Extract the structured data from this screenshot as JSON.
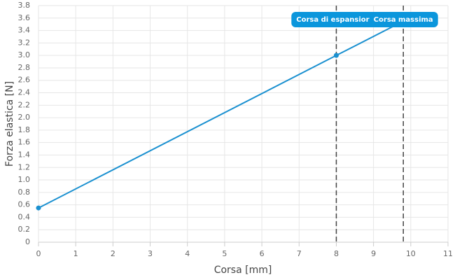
{
  "chart_data": {
    "type": "line",
    "x_label": "Corsa [mm]",
    "y_label": "Forza elastica [N]",
    "series": [
      {
        "color": "#1a90d0",
        "x": [
          0,
          8,
          9.8
        ],
        "values": [
          0.55,
          3.0,
          3.55
        ]
      }
    ],
    "annotations": [
      {
        "x": 8,
        "label": "Corsa di espansior"
      },
      {
        "x": 9.8,
        "label": "Corsa massima"
      }
    ],
    "annotation_color": "#0b96dc",
    "xlim": [
      0,
      11
    ],
    "xticks": [
      0,
      1,
      2,
      3,
      4,
      5,
      6,
      7,
      8,
      9,
      10,
      11
    ],
    "ylim": [
      0,
      3.8
    ],
    "yticks": [
      0,
      0.2,
      0.4,
      0.6,
      0.8,
      {
        "value": 1,
        "label": "1.0"
      },
      1.2,
      1.4,
      1.6,
      1.8,
      {
        "value": 2,
        "label": "2.0"
      },
      2.2,
      2.4,
      2.6,
      2.8,
      {
        "value": 3,
        "label": "3.0"
      },
      3.2,
      3.4,
      3.6,
      3.8
    ],
    "grid": true
  }
}
